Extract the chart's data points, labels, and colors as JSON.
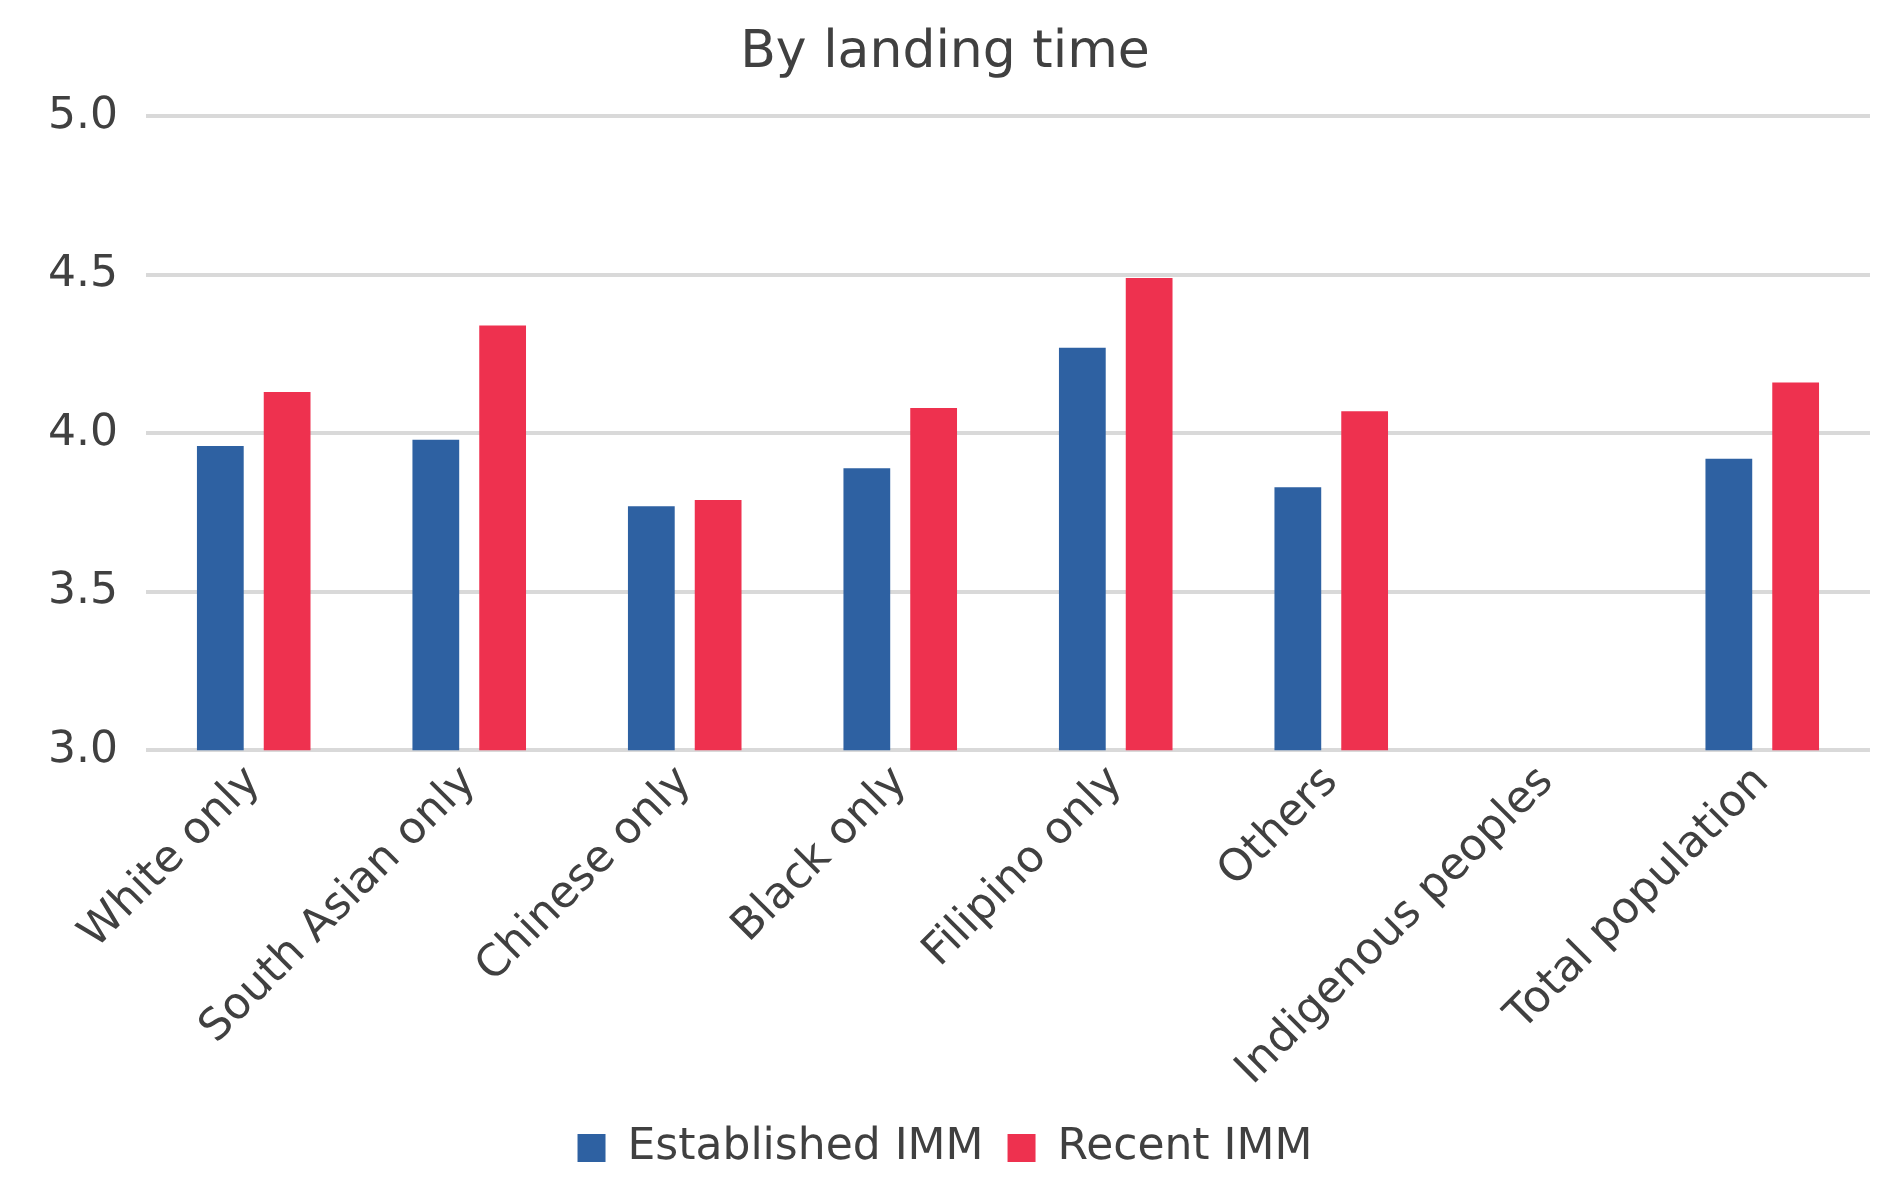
{
  "chart_data": {
    "type": "bar",
    "title": "By landing time",
    "categories": [
      "White only",
      "South Asian only",
      "Chinese only",
      "Black only",
      "Filipino only",
      "Others",
      "Indigenous peoples",
      "Total population"
    ],
    "series": [
      {
        "name": "Established IMM",
        "color": "#2e61a2",
        "values": [
          3.96,
          3.98,
          3.77,
          3.89,
          4.27,
          3.83,
          null,
          3.92
        ]
      },
      {
        "name": "Recent IMM",
        "color": "#ee314f",
        "values": [
          4.13,
          4.34,
          3.79,
          4.08,
          4.49,
          4.07,
          null,
          4.16
        ]
      }
    ],
    "ylim": [
      3.0,
      5.0
    ],
    "yticks": [
      {
        "value": 3,
        "label": "3.0"
      },
      {
        "value": 3.5,
        "label": "3.5"
      },
      {
        "value": 4,
        "label": "4.0"
      },
      {
        "value": 4.5,
        "label": "4.5"
      },
      {
        "value": 5,
        "label": "5.0"
      }
    ],
    "grid": "y",
    "legend": "bottom"
  }
}
